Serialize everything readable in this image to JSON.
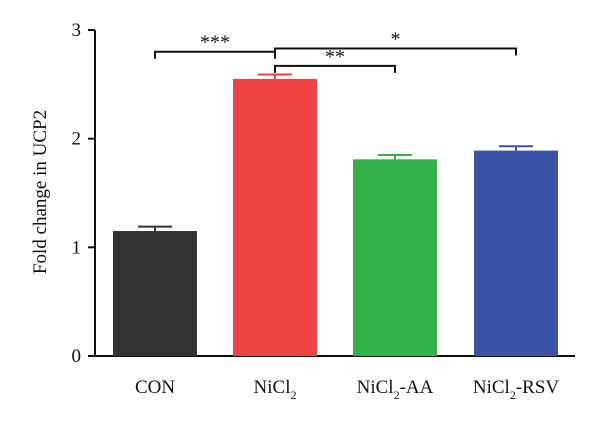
{
  "chart_data": {
    "type": "bar",
    "ylabel": "Fold change in UCP2",
    "xlabel": "",
    "ylim": [
      0,
      3
    ],
    "yticks": [
      0,
      1,
      2,
      3
    ],
    "categories": [
      {
        "base": "CON",
        "sub": "",
        "suffix": ""
      },
      {
        "base": "NiCl",
        "sub": "2",
        "suffix": ""
      },
      {
        "base": "NiCl",
        "sub": "2",
        "suffix": "-AA"
      },
      {
        "base": "NiCl",
        "sub": "2",
        "suffix": "-RSV"
      }
    ],
    "values": [
      1.15,
      2.55,
      1.81,
      1.89
    ],
    "errors": [
      0.04,
      0.04,
      0.04,
      0.04
    ],
    "bar_colors": [
      "#333333",
      "#ee4444",
      "#33b24a",
      "#3a53a4"
    ],
    "significance": [
      {
        "from": 0,
        "to": 1,
        "label": "***",
        "y": 2.8
      },
      {
        "from": 1,
        "to": 2,
        "label": "**",
        "y": 2.67
      },
      {
        "from": 1,
        "to": 3,
        "label": "*",
        "y": 2.83
      }
    ]
  }
}
